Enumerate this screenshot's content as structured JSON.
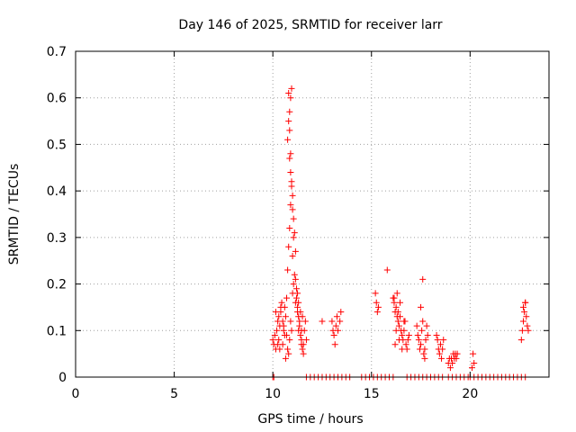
{
  "chart_data": {
    "type": "scatter",
    "title": "Day 146 of 2025, SRMTID for receiver larr",
    "xlabel": "GPS time / hours",
    "ylabel": "SRMTID / TECUs",
    "xlim": [
      0,
      24
    ],
    "ylim": [
      0,
      0.7
    ],
    "x_ticks": [
      0,
      5,
      10,
      15,
      20
    ],
    "x_tick_labels": [
      "0",
      "5",
      "10",
      "15",
      "20"
    ],
    "y_ticks": [
      0,
      0.1,
      0.2,
      0.3,
      0.4,
      0.5,
      0.6,
      0.7
    ],
    "y_tick_labels": [
      "0",
      "0.1",
      "0.2",
      "0.3",
      "0.4",
      "0.5",
      "0.6",
      "0.7"
    ],
    "grid": true,
    "marker": "plus",
    "marker_color": "#ff0000",
    "series": [
      {
        "name": "SRMTID",
        "points": [
          [
            10.0,
            0.0
          ],
          [
            10.05,
            0.0
          ],
          [
            10.0,
            0.08
          ],
          [
            10.05,
            0.07
          ],
          [
            10.1,
            0.09
          ],
          [
            10.15,
            0.06
          ],
          [
            10.2,
            0.1
          ],
          [
            10.25,
            0.12
          ],
          [
            10.3,
            0.13
          ],
          [
            10.35,
            0.11
          ],
          [
            10.4,
            0.14
          ],
          [
            10.45,
            0.16
          ],
          [
            10.5,
            0.12
          ],
          [
            10.55,
            0.1
          ],
          [
            10.6,
            0.15
          ],
          [
            10.65,
            0.13
          ],
          [
            10.7,
            0.09
          ],
          [
            10.75,
            0.06
          ],
          [
            10.8,
            0.05
          ],
          [
            10.85,
            0.08
          ],
          [
            10.9,
            0.12
          ],
          [
            10.95,
            0.1
          ],
          [
            10.15,
            0.14
          ],
          [
            10.3,
            0.08
          ],
          [
            10.5,
            0.07
          ],
          [
            10.65,
            0.04
          ],
          [
            10.7,
            0.17
          ],
          [
            10.4,
            0.15
          ],
          [
            10.55,
            0.11
          ],
          [
            10.6,
            0.09
          ],
          [
            10.25,
            0.07
          ],
          [
            10.35,
            0.06
          ],
          [
            10.75,
            0.23
          ],
          [
            10.8,
            0.28
          ],
          [
            10.85,
            0.32
          ],
          [
            10.9,
            0.37
          ],
          [
            10.95,
            0.41
          ],
          [
            11.0,
            0.39
          ],
          [
            11.05,
            0.34
          ],
          [
            11.1,
            0.31
          ],
          [
            11.15,
            0.27
          ],
          [
            11.2,
            0.19
          ],
          [
            11.25,
            0.15
          ],
          [
            11.3,
            0.13
          ],
          [
            11.35,
            0.11
          ],
          [
            11.4,
            0.09
          ],
          [
            11.45,
            0.07
          ],
          [
            11.5,
            0.06
          ],
          [
            11.55,
            0.05
          ],
          [
            11.6,
            0.1
          ],
          [
            11.65,
            0.12
          ],
          [
            11.7,
            0.08
          ],
          [
            10.75,
            0.51
          ],
          [
            10.8,
            0.55
          ],
          [
            10.85,
            0.57
          ],
          [
            10.9,
            0.6
          ],
          [
            10.95,
            0.62
          ],
          [
            10.8,
            0.61
          ],
          [
            10.85,
            0.53
          ],
          [
            10.9,
            0.48
          ],
          [
            10.85,
            0.47
          ],
          [
            10.9,
            0.44
          ],
          [
            10.95,
            0.42
          ],
          [
            11.0,
            0.36
          ],
          [
            11.05,
            0.3
          ],
          [
            11.0,
            0.26
          ],
          [
            11.1,
            0.22
          ],
          [
            11.15,
            0.21
          ],
          [
            11.2,
            0.17
          ],
          [
            11.25,
            0.14
          ],
          [
            11.3,
            0.16
          ],
          [
            11.35,
            0.12
          ],
          [
            11.4,
            0.14
          ],
          [
            11.45,
            0.1
          ],
          [
            11.5,
            0.13
          ],
          [
            11.0,
            0.18
          ],
          [
            11.05,
            0.2
          ],
          [
            11.15,
            0.16
          ],
          [
            11.25,
            0.18
          ],
          [
            11.3,
            0.1
          ],
          [
            11.45,
            0.08
          ],
          [
            11.55,
            0.07
          ],
          [
            12.5,
            0.12
          ],
          [
            13.0,
            0.12
          ],
          [
            13.05,
            0.1
          ],
          [
            13.1,
            0.09
          ],
          [
            13.15,
            0.07
          ],
          [
            13.2,
            0.11
          ],
          [
            13.25,
            0.13
          ],
          [
            13.3,
            0.1
          ],
          [
            13.4,
            0.12
          ],
          [
            13.45,
            0.14
          ],
          [
            15.2,
            0.18
          ],
          [
            15.25,
            0.16
          ],
          [
            15.3,
            0.14
          ],
          [
            15.35,
            0.15
          ],
          [
            15.8,
            0.23
          ],
          [
            16.1,
            0.17
          ],
          [
            16.15,
            0.16
          ],
          [
            16.2,
            0.14
          ],
          [
            16.25,
            0.15
          ],
          [
            16.3,
            0.13
          ],
          [
            16.35,
            0.12
          ],
          [
            16.4,
            0.11
          ],
          [
            16.45,
            0.16
          ],
          [
            16.5,
            0.1
          ],
          [
            16.55,
            0.09
          ],
          [
            16.6,
            0.08
          ],
          [
            16.65,
            0.1
          ],
          [
            16.7,
            0.12
          ],
          [
            16.75,
            0.07
          ],
          [
            16.8,
            0.06
          ],
          [
            16.85,
            0.08
          ],
          [
            16.9,
            0.09
          ],
          [
            16.2,
            0.07
          ],
          [
            16.3,
            0.18
          ],
          [
            16.4,
            0.08
          ],
          [
            16.15,
            0.17
          ],
          [
            16.25,
            0.1
          ],
          [
            16.35,
            0.14
          ],
          [
            16.45,
            0.13
          ],
          [
            16.55,
            0.06
          ],
          [
            16.65,
            0.12
          ],
          [
            17.3,
            0.11
          ],
          [
            17.35,
            0.09
          ],
          [
            17.4,
            0.08
          ],
          [
            17.45,
            0.06
          ],
          [
            17.5,
            0.07
          ],
          [
            17.55,
            0.1
          ],
          [
            17.6,
            0.12
          ],
          [
            17.65,
            0.05
          ],
          [
            17.7,
            0.06
          ],
          [
            17.75,
            0.08
          ],
          [
            17.8,
            0.11
          ],
          [
            17.85,
            0.09
          ],
          [
            17.5,
            0.15
          ],
          [
            17.6,
            0.21
          ],
          [
            17.7,
            0.04
          ],
          [
            18.3,
            0.09
          ],
          [
            18.35,
            0.08
          ],
          [
            18.4,
            0.06
          ],
          [
            18.45,
            0.05
          ],
          [
            18.5,
            0.07
          ],
          [
            18.55,
            0.04
          ],
          [
            18.6,
            0.06
          ],
          [
            18.65,
            0.08
          ],
          [
            18.9,
            0.03
          ],
          [
            18.95,
            0.04
          ],
          [
            19.0,
            0.02
          ],
          [
            19.05,
            0.04
          ],
          [
            19.1,
            0.03
          ],
          [
            19.15,
            0.05
          ],
          [
            19.2,
            0.04
          ],
          [
            19.25,
            0.05
          ],
          [
            19.3,
            0.04
          ],
          [
            19.35,
            0.05
          ],
          [
            20.1,
            0.02
          ],
          [
            20.15,
            0.05
          ],
          [
            20.2,
            0.03
          ],
          [
            22.6,
            0.08
          ],
          [
            22.65,
            0.1
          ],
          [
            22.7,
            0.12
          ],
          [
            22.75,
            0.14
          ],
          [
            22.8,
            0.16
          ],
          [
            22.85,
            0.13
          ],
          [
            22.9,
            0.11
          ],
          [
            22.95,
            0.1
          ],
          [
            22.7,
            0.15
          ],
          [
            22.8,
            0.16
          ],
          [
            11.7,
            0.0
          ],
          [
            11.9,
            0.0
          ],
          [
            12.1,
            0.0
          ],
          [
            12.3,
            0.0
          ],
          [
            12.5,
            0.0
          ],
          [
            12.7,
            0.0
          ],
          [
            12.9,
            0.0
          ],
          [
            13.1,
            0.0
          ],
          [
            13.3,
            0.0
          ],
          [
            13.5,
            0.0
          ],
          [
            13.7,
            0.0
          ],
          [
            13.9,
            0.0
          ],
          [
            14.5,
            0.0
          ],
          [
            14.7,
            0.0
          ],
          [
            14.9,
            0.0
          ],
          [
            15.1,
            0.0
          ],
          [
            15.3,
            0.0
          ],
          [
            15.5,
            0.0
          ],
          [
            15.7,
            0.0
          ],
          [
            15.9,
            0.0
          ],
          [
            16.1,
            0.0
          ],
          [
            16.8,
            0.0
          ],
          [
            17.0,
            0.0
          ],
          [
            17.2,
            0.0
          ],
          [
            17.4,
            0.0
          ],
          [
            17.6,
            0.0
          ],
          [
            17.8,
            0.0
          ],
          [
            18.0,
            0.0
          ],
          [
            18.2,
            0.0
          ],
          [
            18.4,
            0.0
          ],
          [
            18.6,
            0.0
          ],
          [
            18.9,
            0.0
          ],
          [
            19.1,
            0.0
          ],
          [
            19.3,
            0.0
          ],
          [
            19.5,
            0.0
          ],
          [
            19.7,
            0.0
          ],
          [
            19.9,
            0.0
          ],
          [
            20.0,
            0.0
          ],
          [
            20.2,
            0.0
          ],
          [
            20.4,
            0.0
          ],
          [
            20.6,
            0.0
          ],
          [
            20.8,
            0.0
          ],
          [
            21.0,
            0.0
          ],
          [
            21.2,
            0.0
          ],
          [
            21.4,
            0.0
          ],
          [
            21.6,
            0.0
          ],
          [
            21.8,
            0.0
          ],
          [
            22.0,
            0.0
          ],
          [
            22.2,
            0.0
          ],
          [
            22.4,
            0.0
          ],
          [
            22.6,
            0.0
          ],
          [
            22.8,
            0.0
          ]
        ]
      }
    ]
  }
}
